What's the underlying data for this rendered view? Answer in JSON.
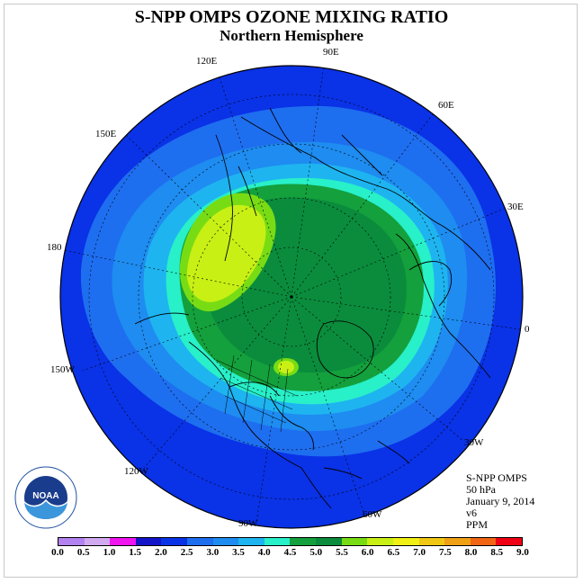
{
  "header": {
    "title": "S-NPP OMPS OZONE MIXING RATIO",
    "subtitle": "Northern Hemisphere"
  },
  "map": {
    "projection": "north-polar-stereographic",
    "longitude_labels": [
      "120E",
      "90E",
      "60E",
      "150E",
      "30E",
      "180",
      "0",
      "150W",
      "30W",
      "120W",
      "60W",
      "90W"
    ],
    "ozone_fields": [
      {
        "region": "outer-hemisphere",
        "range_ppm": "1.5-2.0",
        "color": "#0a32e6"
      },
      {
        "region": "mid-latitude-band",
        "range_ppm": "2.0-3.5",
        "color": "#1e8cf0"
      },
      {
        "region": "polar-vortex-edge",
        "range_ppm": "3.5-4.0",
        "color": "#28f0c8"
      },
      {
        "region": "high-latitude-core",
        "range_ppm": "4.5-5.0",
        "color": "#0a8c3c"
      },
      {
        "region": "east-siberia-maximum",
        "range_ppm": "5.5-6.0",
        "color": "#c8f014"
      },
      {
        "region": "hudson-bay-maximum",
        "range_ppm": "5.5-6.0",
        "color": "#c8f014"
      }
    ]
  },
  "info_block": {
    "instrument": "S-NPP OMPS",
    "level": "50 hPa",
    "date": "January 9, 2014",
    "version": "v6",
    "units": "PPM"
  },
  "logo": {
    "text": "NOAA",
    "icon": "noaa-logo-icon"
  },
  "colorbar": {
    "labels": [
      "0.0",
      "0.5",
      "1.0",
      "1.5",
      "2.0",
      "2.5",
      "3.0",
      "3.5",
      "4.0",
      "4.5",
      "5.0",
      "5.5",
      "6.0",
      "6.5",
      "7.0",
      "7.5",
      "8.0",
      "8.5",
      "9.0"
    ],
    "colors": [
      "#b482f0",
      "#d2aaf0",
      "#f014f0",
      "#1414c8",
      "#0a32e6",
      "#1e6ef0",
      "#1e8cf0",
      "#1eb4f0",
      "#28f0c8",
      "#14a03c",
      "#0a8c3c",
      "#78dc14",
      "#c8f014",
      "#f0f014",
      "#f0c814",
      "#f0a014",
      "#f06414",
      "#f00014",
      "#8c5a3c"
    ]
  }
}
